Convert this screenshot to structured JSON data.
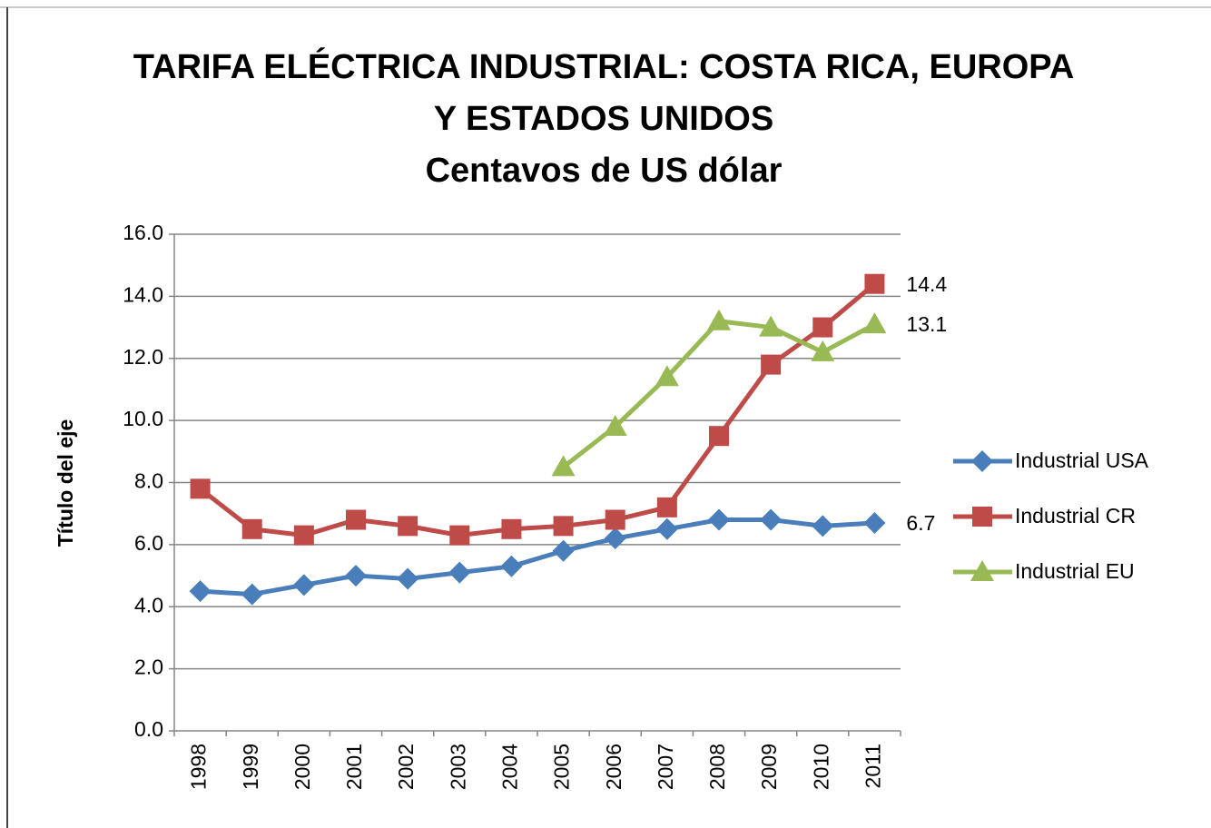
{
  "chart_data": {
    "type": "line",
    "title": [
      "TARIFA ELÉCTRICA INDUSTRIAL: COSTA RICA, EUROPA",
      "Y ESTADOS UNIDOS"
    ],
    "subtitle": "Centavos de US dólar",
    "y_label": "Título del eje",
    "categories": [
      "1998",
      "1999",
      "2000",
      "2001",
      "2002",
      "2003",
      "2004",
      "2005",
      "2006",
      "2007",
      "2008",
      "2009",
      "2010",
      "2011"
    ],
    "series": [
      {
        "name": "Industrial USA",
        "color": "#4a7ebb",
        "marker": "diamond",
        "values": [
          4.5,
          4.4,
          4.7,
          5.0,
          4.9,
          5.1,
          5.3,
          5.8,
          6.2,
          6.5,
          6.8,
          6.8,
          6.6,
          6.7
        ]
      },
      {
        "name": "Industrial CR",
        "color": "#be4b48",
        "marker": "square",
        "values": [
          7.8,
          6.5,
          6.3,
          6.8,
          6.6,
          6.3,
          6.5,
          6.6,
          6.8,
          7.2,
          9.5,
          11.8,
          13.0,
          14.4
        ]
      },
      {
        "name": "Industrial EU",
        "color": "#98b954",
        "marker": "triangle",
        "values": [
          null,
          null,
          null,
          null,
          null,
          null,
          null,
          8.5,
          9.8,
          11.4,
          13.2,
          13.0,
          12.2,
          13.1
        ]
      }
    ],
    "data_labels": "last",
    "ylim": [
      0,
      16
    ],
    "yticks": [
      {
        "value": 0,
        "label": "0.0"
      },
      {
        "value": 2,
        "label": "2.0"
      },
      {
        "value": 4,
        "label": "4.0"
      },
      {
        "value": 6,
        "label": "6.0"
      },
      {
        "value": 8,
        "label": "8.0"
      },
      {
        "value": 10,
        "label": "10.0"
      },
      {
        "value": 12,
        "label": "12.0"
      },
      {
        "value": 14,
        "label": "14.0"
      },
      {
        "value": 16,
        "label": "16.0"
      }
    ],
    "grid": true,
    "legend": "right"
  }
}
